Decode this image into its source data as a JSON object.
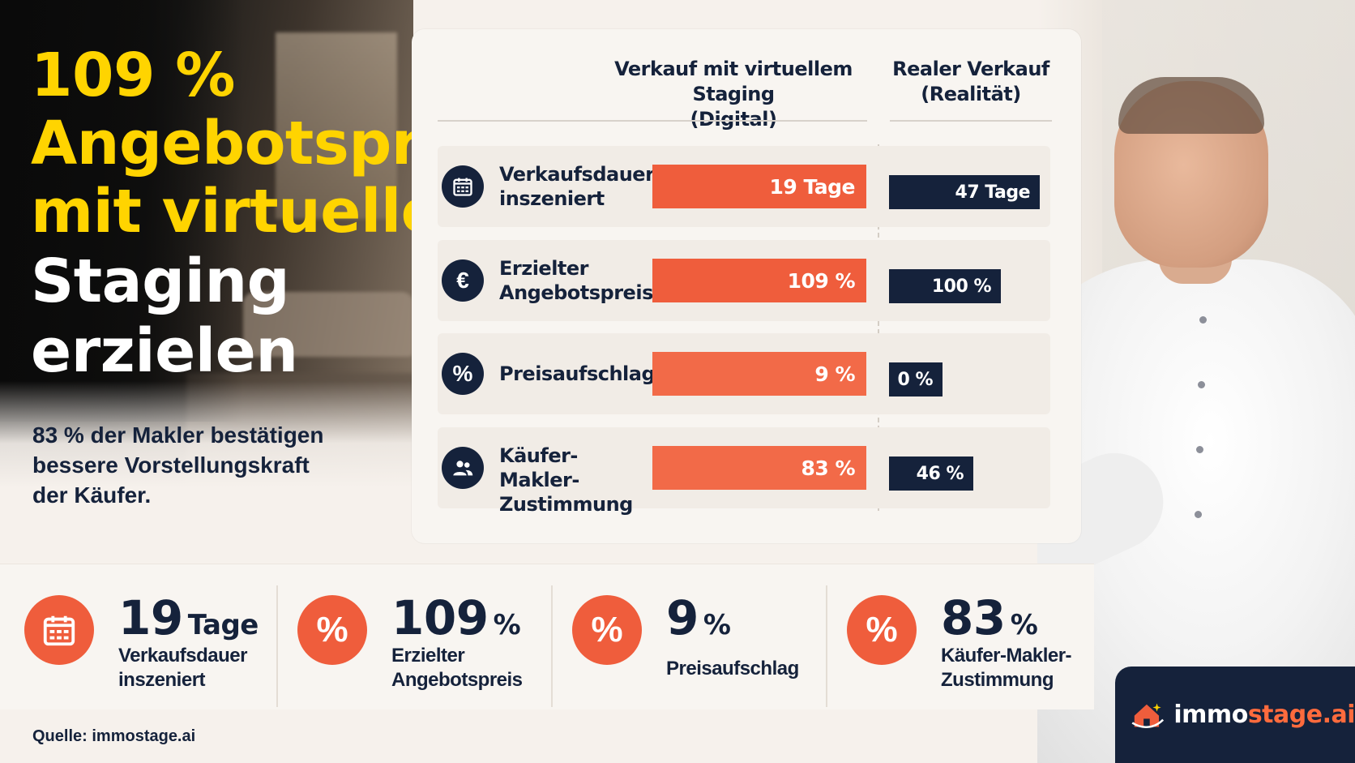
{
  "headline": {
    "line1": "109 %",
    "line2": "Angebotspreis",
    "line3": "mit virtuellem",
    "line4": "Staging",
    "line5": "erzielen"
  },
  "subtext": {
    "line1": "83 % der Makler bestätigen",
    "line2": "bessere Vorstellungskraft",
    "line3": "der Käufer."
  },
  "chart_data": {
    "type": "bar",
    "columns": [
      {
        "line1": "Verkauf mit virtuellem Staging",
        "line2": "(Digital)"
      },
      {
        "line1": "Realer Verkauf",
        "line2": "(Realität)"
      }
    ],
    "rows": [
      {
        "label1": "Verkaufsdauer",
        "label2": "inszeniert",
        "icon": "calendar-icon",
        "digital": 19,
        "digital_label": "19 Tage",
        "real": 47,
        "real_label": "47 Tage"
      },
      {
        "label1": "Erzielter",
        "label2": "Angebotspreis",
        "icon": "euro-icon",
        "digital": 109,
        "digital_label": "109 %",
        "real": 100,
        "real_label": "100 %"
      },
      {
        "label1": "Preisaufschlag",
        "label2": "",
        "icon": "percent-icon",
        "digital": 9,
        "digital_label": "9 %",
        "real": 0,
        "real_label": "0 %"
      },
      {
        "label1": "Käufer-Makler-",
        "label2": "Zustimmung",
        "icon": "users-icon",
        "digital": 83,
        "digital_label": "83 %",
        "real": 46,
        "real_label": "46 %"
      }
    ],
    "colors": {
      "digital": "#ef5d3c",
      "digital_light": "#f26a48",
      "real": "#15223b"
    }
  },
  "stats": [
    {
      "number": "19",
      "unit": "Tage",
      "label1": "Verkaufsdauer",
      "label2": "inszeniert",
      "icon": "calendar-icon"
    },
    {
      "number": "109",
      "unit": "%",
      "label1": "Erzielter",
      "label2": "Angebotspreis",
      "icon": "percent-icon"
    },
    {
      "number": "9",
      "unit": "%",
      "label1": "Preisaufschlag",
      "label2": "",
      "icon": "percent-icon"
    },
    {
      "number": "83",
      "unit": "%",
      "label1": "Käufer-Makler-",
      "label2": "Zustimmung",
      "icon": "percent-icon"
    }
  ],
  "source": "Quelle: immostage.ai",
  "logo": {
    "part1": "immo",
    "part2": "stage.ai"
  },
  "colors": {
    "navy": "#15223b",
    "orange": "#ef5d3c",
    "yellow": "#ffd400"
  }
}
